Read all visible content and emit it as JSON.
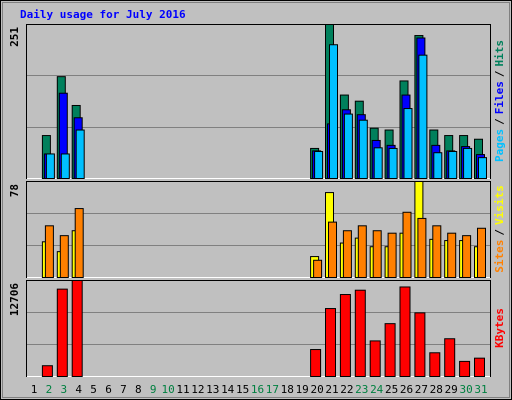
{
  "series_separator": "/",
  "chart_data": [
    {
      "type": "bar",
      "title": "Daily usage for July 2016",
      "ylim": [
        0,
        251
      ],
      "yticks": [
        251
      ],
      "series": [
        {
          "name": "Hits",
          "color": "#00805c",
          "values": [
            0,
            70,
            166,
            119,
            0,
            0,
            0,
            0,
            0,
            0,
            0,
            0,
            0,
            0,
            0,
            0,
            0,
            0,
            0,
            49,
            251,
            136,
            126,
            82,
            79,
            159,
            233,
            79,
            70,
            70,
            64
          ]
        },
        {
          "name": "Files",
          "color": "#0000ff",
          "values": [
            0,
            40,
            139,
            99,
            0,
            0,
            0,
            0,
            0,
            0,
            0,
            0,
            0,
            0,
            0,
            0,
            0,
            0,
            0,
            45,
            89,
            112,
            104,
            62,
            54,
            136,
            229,
            54,
            45,
            52,
            39
          ]
        },
        {
          "name": "Pages",
          "color": "#00c0ff",
          "values": [
            0,
            40,
            40,
            79,
            0,
            0,
            0,
            0,
            0,
            0,
            0,
            0,
            0,
            0,
            0,
            0,
            0,
            0,
            0,
            44,
            218,
            105,
            95,
            50,
            49,
            114,
            201,
            42,
            44,
            49,
            34
          ]
        }
      ]
    },
    {
      "type": "bar",
      "ylim": [
        0,
        78
      ],
      "yticks": [
        78
      ],
      "series": [
        {
          "name": "Visits",
          "color": "#ffff00",
          "values": [
            0,
            29,
            21,
            38,
            0,
            0,
            0,
            0,
            0,
            0,
            0,
            0,
            0,
            0,
            0,
            0,
            0,
            0,
            0,
            17,
            69,
            28,
            32,
            25,
            25,
            36,
            78,
            31,
            30,
            30,
            25
          ]
        },
        {
          "name": "Sites",
          "color": "#ff8000",
          "values": [
            0,
            42,
            34,
            56,
            0,
            0,
            0,
            0,
            0,
            0,
            0,
            0,
            0,
            0,
            0,
            0,
            0,
            0,
            0,
            14,
            45,
            38,
            42,
            38,
            36,
            53,
            48,
            42,
            36,
            34,
            40
          ]
        }
      ]
    },
    {
      "type": "bar",
      "ylim": [
        0,
        12706
      ],
      "yticks": [
        12706
      ],
      "categories": [
        "1",
        "2",
        "3",
        "4",
        "5",
        "6",
        "7",
        "8",
        "9",
        "10",
        "11",
        "12",
        "13",
        "14",
        "15",
        "16",
        "17",
        "18",
        "19",
        "20",
        "21",
        "22",
        "23",
        "24",
        "25",
        "26",
        "27",
        "28",
        "29",
        "30",
        "31"
      ],
      "category_colors": [
        "#000000",
        "#008040",
        "#008040",
        "#000000",
        "#000000",
        "#000000",
        "#000000",
        "#000000",
        "#008040",
        "#008040",
        "#000000",
        "#000000",
        "#000000",
        "#000000",
        "#000000",
        "#008040",
        "#008040",
        "#000000",
        "#000000",
        "#000000",
        "#000000",
        "#000000",
        "#008040",
        "#008040",
        "#000000",
        "#000000",
        "#000000",
        "#000000",
        "#000000",
        "#008040",
        "#008040"
      ],
      "series": [
        {
          "name": "KBytes",
          "color": "#ff0000",
          "values": [
            0,
            1428,
            11564,
            12706,
            0,
            0,
            0,
            0,
            0,
            0,
            0,
            0,
            0,
            0,
            0,
            0,
            0,
            0,
            0,
            3569,
            8994,
            10850,
            11421,
            4711,
            6995,
            11849,
            8423,
            3141,
            4997,
            1999,
            2427
          ]
        }
      ]
    }
  ]
}
